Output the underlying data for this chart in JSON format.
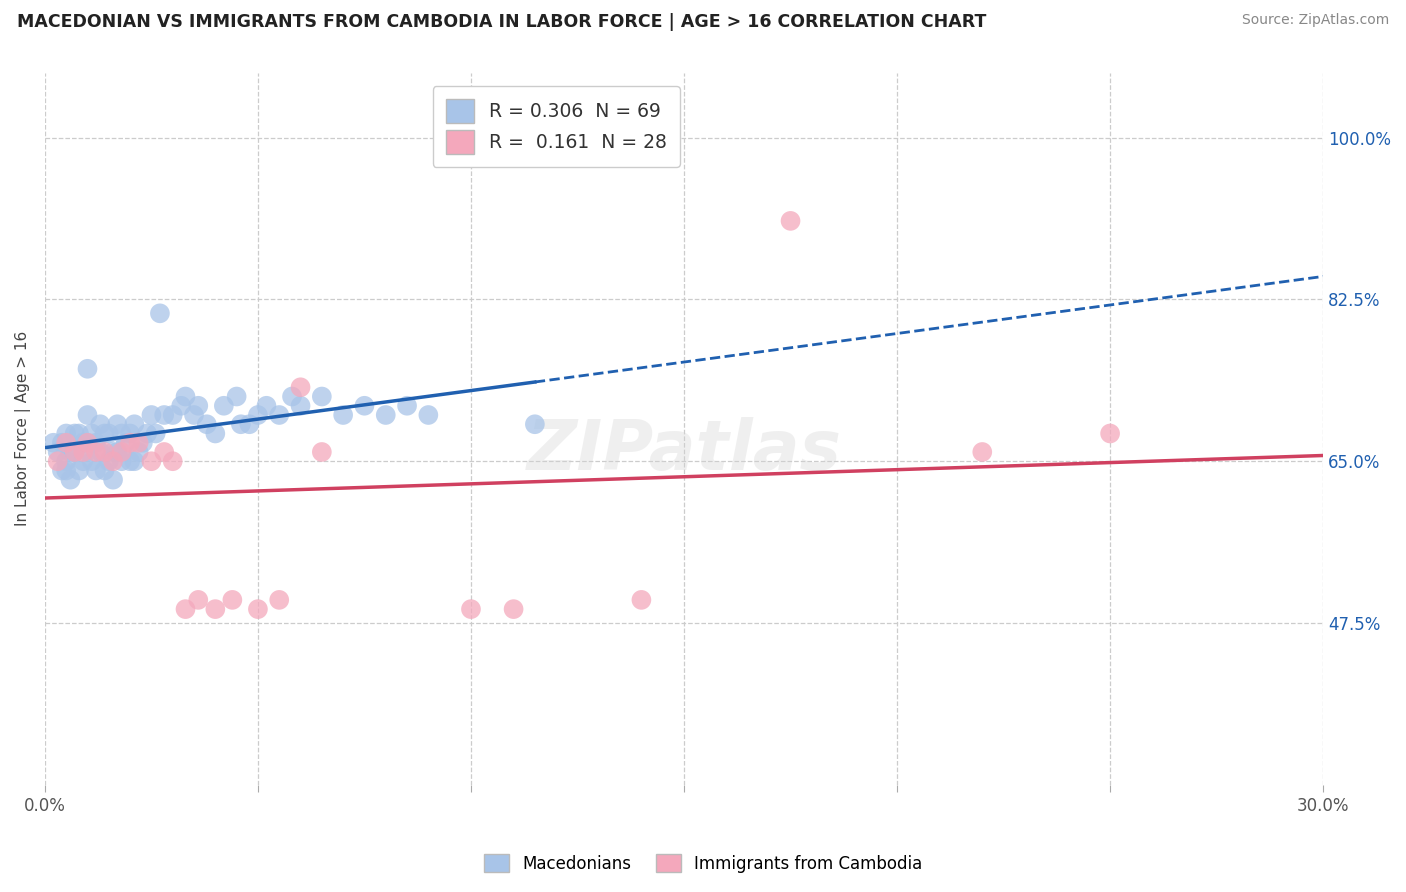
{
  "title": "MACEDONIAN VS IMMIGRANTS FROM CAMBODIA IN LABOR FORCE | AGE > 16 CORRELATION CHART",
  "source_text": "Source: ZipAtlas.com",
  "ylabel": "In Labor Force | Age > 16",
  "xlim": [
    0.0,
    0.3
  ],
  "ylim": [
    0.3,
    1.07
  ],
  "xticks": [
    0.0,
    0.05,
    0.1,
    0.15,
    0.2,
    0.25,
    0.3
  ],
  "xticklabels": [
    "0.0%",
    "",
    "",
    "",
    "",
    "",
    "30.0%"
  ],
  "ytick_vals": [
    0.475,
    0.65,
    0.825,
    1.0
  ],
  "ytick_labels": [
    "47.5%",
    "65.0%",
    "82.5%",
    "100.0%"
  ],
  "bg": "#ffffff",
  "grid_color": "#cccccc",
  "watermark": "ZIPatlas",
  "macedonian_R": "0.306",
  "macedonian_N": "69",
  "cambodia_R": "0.161",
  "cambodia_N": "28",
  "mac_color": "#a8c4e8",
  "cam_color": "#f4a8bc",
  "mac_line_color": "#2060b0",
  "cam_line_color": "#d04060",
  "mac_x": [
    0.002,
    0.003,
    0.004,
    0.004,
    0.005,
    0.005,
    0.005,
    0.006,
    0.006,
    0.007,
    0.007,
    0.008,
    0.008,
    0.009,
    0.009,
    0.01,
    0.01,
    0.01,
    0.011,
    0.011,
    0.012,
    0.012,
    0.013,
    0.013,
    0.014,
    0.014,
    0.015,
    0.015,
    0.016,
    0.016,
    0.017,
    0.017,
    0.018,
    0.018,
    0.019,
    0.02,
    0.02,
    0.021,
    0.021,
    0.022,
    0.023,
    0.024,
    0.025,
    0.026,
    0.027,
    0.028,
    0.03,
    0.032,
    0.033,
    0.035,
    0.036,
    0.038,
    0.04,
    0.042,
    0.045,
    0.046,
    0.048,
    0.05,
    0.052,
    0.055,
    0.058,
    0.06,
    0.065,
    0.07,
    0.075,
    0.08,
    0.085,
    0.09,
    0.115
  ],
  "mac_y": [
    0.67,
    0.66,
    0.67,
    0.64,
    0.68,
    0.65,
    0.64,
    0.66,
    0.63,
    0.68,
    0.66,
    0.68,
    0.64,
    0.67,
    0.65,
    0.7,
    0.75,
    0.67,
    0.68,
    0.65,
    0.67,
    0.64,
    0.69,
    0.66,
    0.68,
    0.64,
    0.68,
    0.65,
    0.66,
    0.63,
    0.69,
    0.66,
    0.68,
    0.65,
    0.67,
    0.68,
    0.65,
    0.69,
    0.65,
    0.66,
    0.67,
    0.68,
    0.7,
    0.68,
    0.81,
    0.7,
    0.7,
    0.71,
    0.72,
    0.7,
    0.71,
    0.69,
    0.68,
    0.71,
    0.72,
    0.69,
    0.69,
    0.7,
    0.71,
    0.7,
    0.72,
    0.71,
    0.72,
    0.7,
    0.71,
    0.7,
    0.71,
    0.7,
    0.69
  ],
  "cam_x": [
    0.003,
    0.005,
    0.007,
    0.009,
    0.01,
    0.012,
    0.014,
    0.016,
    0.018,
    0.02,
    0.022,
    0.025,
    0.028,
    0.03,
    0.033,
    0.036,
    0.04,
    0.044,
    0.05,
    0.055,
    0.06,
    0.065,
    0.1,
    0.11,
    0.14,
    0.175,
    0.22,
    0.25
  ],
  "cam_y": [
    0.65,
    0.67,
    0.66,
    0.66,
    0.67,
    0.66,
    0.66,
    0.65,
    0.66,
    0.67,
    0.67,
    0.65,
    0.66,
    0.65,
    0.49,
    0.5,
    0.49,
    0.5,
    0.49,
    0.5,
    0.73,
    0.66,
    0.49,
    0.49,
    0.5,
    0.91,
    0.66,
    0.68
  ]
}
